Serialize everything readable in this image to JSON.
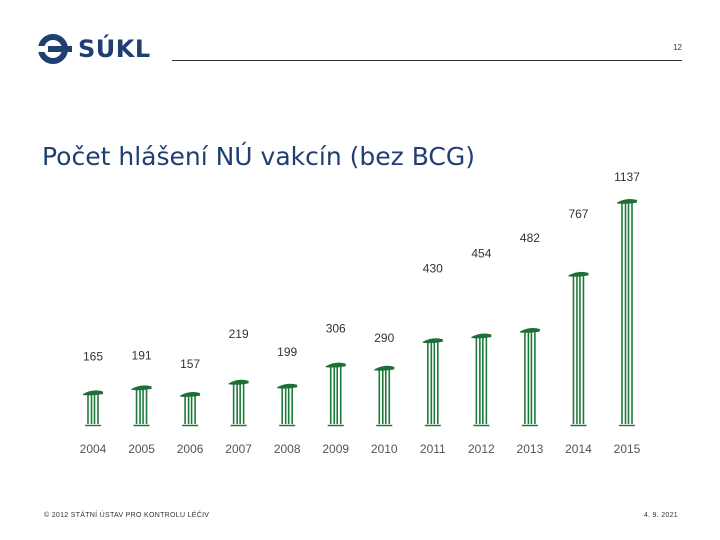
{
  "header": {
    "logo_text": "SÚKL",
    "page_number": "12"
  },
  "slide": {
    "title": "Počet hlášení NÚ vakcín (bez BCG)"
  },
  "footer": {
    "left": "© 2012 STÁTNÍ ÚSTAV PRO KONTROLU LÉČIV",
    "right": "4. 9. 2021"
  },
  "colors": {
    "brand": "#1f3f73",
    "bar": "#1e7a3a",
    "bar_cap": "#1e6f35"
  },
  "chart_data": {
    "type": "bar",
    "title": "Počet hlášení NÚ vakcín (bez BCG)",
    "categories": [
      "2004",
      "2005",
      "2006",
      "2007",
      "2008",
      "2009",
      "2010",
      "2011",
      "2012",
      "2013",
      "2014",
      "2015"
    ],
    "values": [
      165,
      191,
      157,
      219,
      199,
      306,
      290,
      430,
      454,
      482,
      767,
      1137
    ],
    "value_labels": [
      "165",
      "191",
      "157",
      "219",
      "199",
      "306",
      "290",
      "430",
      "454",
      "482",
      "767",
      "1137"
    ],
    "xlabel": "",
    "ylabel": "",
    "grid": false,
    "legend": "none",
    "axis_visible": false
  }
}
